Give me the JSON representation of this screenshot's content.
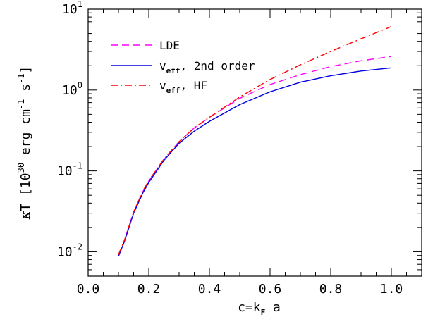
{
  "chart_data": {
    "type": "line",
    "xscale": "linear",
    "yscale": "log",
    "xlim": [
      0.0,
      1.1
    ],
    "ylim": [
      0.005,
      10
    ],
    "x_ticks": [
      "0.0",
      "0.2",
      "0.4",
      "0.6",
      "0.8",
      "1.0"
    ],
    "x_tick_values": [
      0.0,
      0.2,
      0.4,
      0.6,
      0.8,
      1.0
    ],
    "y_tick_values": [
      0.01,
      0.1,
      1,
      10
    ],
    "y_ticks": [
      {
        "base": "10",
        "exp": "-2"
      },
      {
        "base": "10",
        "exp": "-1"
      },
      {
        "base": "10",
        "exp": "0"
      },
      {
        "base": "10",
        "exp": "1"
      }
    ],
    "xlabel": {
      "main": "c=k",
      "sub": "F",
      "tail": " a"
    },
    "ylabel": {
      "kappa": "κ",
      "pre": "T [10",
      "sup1": "30",
      "mid": " erg cm",
      "sup2": "-1",
      "mid2": " s",
      "sup3": "-1",
      "post": "]"
    },
    "legend_position": "top-left",
    "series": [
      {
        "name": "LDE",
        "color": "#ff00ff",
        "dash": "dashed",
        "x": [
          0.1,
          0.12,
          0.15,
          0.18,
          0.2,
          0.25,
          0.3,
          0.35,
          0.4,
          0.5,
          0.6,
          0.7,
          0.8,
          0.9,
          1.0
        ],
        "y": [
          0.009,
          0.014,
          0.031,
          0.055,
          0.075,
          0.14,
          0.23,
          0.34,
          0.46,
          0.79,
          1.17,
          1.55,
          1.95,
          2.3,
          2.6
        ]
      },
      {
        "name_parts": {
          "main": "v",
          "sub": "eff",
          "tail": ", 2nd order"
        },
        "color": "#0000dd",
        "dash": "solid",
        "x": [
          0.1,
          0.12,
          0.15,
          0.18,
          0.2,
          0.25,
          0.3,
          0.35,
          0.4,
          0.5,
          0.6,
          0.7,
          0.8,
          0.9,
          1.0
        ],
        "y": [
          0.0088,
          0.0135,
          0.03,
          0.053,
          0.072,
          0.135,
          0.22,
          0.31,
          0.41,
          0.66,
          0.95,
          1.25,
          1.5,
          1.72,
          1.88
        ]
      },
      {
        "name_parts": {
          "main": "v",
          "sub": "eff",
          "tail": ", HF"
        },
        "color": "#ff0000",
        "dash": "dashdot",
        "x": [
          0.1,
          0.12,
          0.15,
          0.18,
          0.2,
          0.25,
          0.3,
          0.35,
          0.4,
          0.5,
          0.6,
          0.7,
          0.8,
          0.9,
          1.0
        ],
        "y": [
          0.0092,
          0.014,
          0.031,
          0.056,
          0.076,
          0.14,
          0.23,
          0.34,
          0.46,
          0.82,
          1.35,
          2.05,
          3.0,
          4.3,
          6.1
        ]
      }
    ]
  }
}
